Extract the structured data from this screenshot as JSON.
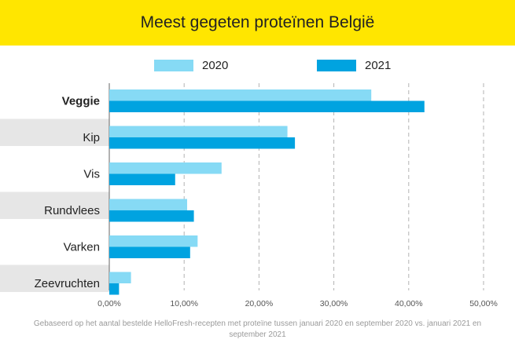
{
  "header": {
    "title": "Meest gegeten proteïnen België",
    "background": "#FFE600"
  },
  "footnote": "Gebaseerd op het aantal bestelde HelloFresh-recepten met proteïne tussen januari 2020 en september 2020 vs. januari 2021 en september 2021",
  "chart_data": {
    "type": "bar",
    "orientation": "horizontal",
    "title": "Meest gegeten proteïnen België",
    "categories": [
      "Veggie",
      "Kip",
      "Vis",
      "Rundvlees",
      "Varken",
      "Zeevruchten"
    ],
    "highlighted_category": "Veggie",
    "series": [
      {
        "name": "2020",
        "color": "#86DAF5",
        "values": [
          35.0,
          23.8,
          15.0,
          10.4,
          11.8,
          2.9
        ]
      },
      {
        "name": "2021",
        "color": "#00A3E0",
        "values": [
          42.1,
          24.8,
          8.8,
          11.3,
          10.8,
          1.3
        ]
      }
    ],
    "xlim": [
      0,
      50
    ],
    "xticks": [
      "0,00%",
      "10,00%",
      "20,00%",
      "30,00%",
      "40,00%",
      "50,00%"
    ],
    "grid": "vertical dashed",
    "legend_position": "top",
    "row_band_color": "#E6E6E6"
  }
}
